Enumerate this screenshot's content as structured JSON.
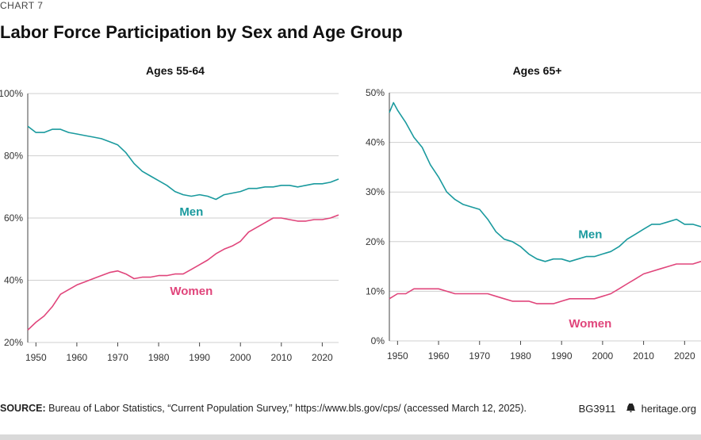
{
  "header": {
    "kicker": "CHART 7",
    "title": "Labor Force Participation by Sex and Age Group"
  },
  "footer": {
    "source_label": "SOURCE:",
    "source_text": " Bureau of Labor Statistics, “Current Population Survey,” https://www.bls.gov/cps/ (accessed March 12, 2025).",
    "report_id": "BG3911",
    "site": "heritage.org"
  },
  "colors": {
    "men": "#1a9a9e",
    "women": "#e0457b",
    "grid": "#cfcfcf",
    "axis": "#444444"
  },
  "chart_data": [
    {
      "type": "line",
      "title": "Ages 55-64",
      "xlim": [
        1948,
        2024
      ],
      "ylim": [
        20,
        100
      ],
      "xticks": [
        1950,
        1960,
        1970,
        1980,
        1990,
        2000,
        2010,
        2020
      ],
      "yticks": [
        20,
        40,
        60,
        80,
        100
      ],
      "ytick_labels": [
        "20%",
        "40%",
        "60%",
        "80%",
        "100%"
      ],
      "grid": true,
      "series": [
        {
          "name": "Men",
          "label_x": 1988,
          "label_y": 62,
          "x": [
            1948,
            1950,
            1952,
            1954,
            1956,
            1958,
            1960,
            1962,
            1964,
            1966,
            1968,
            1970,
            1972,
            1974,
            1976,
            1978,
            1980,
            1982,
            1984,
            1986,
            1988,
            1990,
            1992,
            1994,
            1996,
            1998,
            2000,
            2002,
            2004,
            2006,
            2008,
            2010,
            2012,
            2014,
            2016,
            2018,
            2020,
            2022,
            2024
          ],
          "y": [
            89.5,
            87.5,
            87.5,
            88.5,
            88.5,
            87.5,
            87.0,
            86.5,
            86.0,
            85.5,
            84.5,
            83.5,
            81.0,
            77.5,
            75.0,
            73.5,
            72.0,
            70.5,
            68.5,
            67.5,
            67.0,
            67.5,
            67.0,
            66.0,
            67.5,
            68.0,
            68.5,
            69.5,
            69.5,
            70.0,
            70.0,
            70.5,
            70.5,
            70.0,
            70.5,
            71.0,
            71.0,
            71.5,
            72.5
          ]
        },
        {
          "name": "Women",
          "label_x": 1988,
          "label_y": 36.5,
          "x": [
            1948,
            1950,
            1952,
            1954,
            1956,
            1958,
            1960,
            1962,
            1964,
            1966,
            1968,
            1970,
            1972,
            1974,
            1976,
            1978,
            1980,
            1982,
            1984,
            1986,
            1988,
            1990,
            1992,
            1994,
            1996,
            1998,
            2000,
            2002,
            2004,
            2006,
            2008,
            2010,
            2012,
            2014,
            2016,
            2018,
            2020,
            2022,
            2024
          ],
          "y": [
            24.0,
            26.5,
            28.5,
            31.5,
            35.5,
            37.0,
            38.5,
            39.5,
            40.5,
            41.5,
            42.5,
            43.0,
            42.0,
            40.5,
            41.0,
            41.0,
            41.5,
            41.5,
            42.0,
            42.0,
            43.5,
            45.0,
            46.5,
            48.5,
            50.0,
            51.0,
            52.5,
            55.5,
            57.0,
            58.5,
            60.0,
            60.0,
            59.5,
            59.0,
            59.0,
            59.5,
            59.5,
            60.0,
            61.0
          ]
        }
      ]
    },
    {
      "type": "line",
      "title": "Ages 65+",
      "xlim": [
        1948,
        2024
      ],
      "ylim": [
        0,
        50
      ],
      "xticks": [
        1950,
        1960,
        1970,
        1980,
        1990,
        2000,
        2010,
        2020
      ],
      "yticks": [
        0,
        10,
        20,
        30,
        40,
        50
      ],
      "ytick_labels": [
        "0%",
        "10%",
        "20%",
        "30%",
        "40%",
        "50%"
      ],
      "grid": true,
      "series": [
        {
          "name": "Men",
          "label_x": 1997,
          "label_y": 21.5,
          "x": [
            1948,
            1949,
            1950,
            1952,
            1954,
            1956,
            1958,
            1960,
            1962,
            1964,
            1966,
            1968,
            1970,
            1972,
            1974,
            1976,
            1978,
            1980,
            1982,
            1984,
            1986,
            1988,
            1990,
            1992,
            1994,
            1996,
            1998,
            2000,
            2002,
            2004,
            2006,
            2008,
            2010,
            2012,
            2014,
            2016,
            2018,
            2020,
            2022,
            2024
          ],
          "y": [
            46.0,
            48.0,
            46.5,
            44.0,
            41.0,
            39.0,
            35.5,
            33.0,
            30.0,
            28.5,
            27.5,
            27.0,
            26.5,
            24.5,
            22.0,
            20.5,
            20.0,
            19.0,
            17.5,
            16.5,
            16.0,
            16.5,
            16.5,
            16.0,
            16.5,
            17.0,
            17.0,
            17.5,
            18.0,
            19.0,
            20.5,
            21.5,
            22.5,
            23.5,
            23.5,
            24.0,
            24.5,
            23.5,
            23.5,
            23.0
          ]
        },
        {
          "name": "Women",
          "label_x": 1997,
          "label_y": 3.5,
          "x": [
            1948,
            1950,
            1952,
            1954,
            1956,
            1958,
            1960,
            1962,
            1964,
            1966,
            1968,
            1970,
            1972,
            1974,
            1976,
            1978,
            1980,
            1982,
            1984,
            1986,
            1988,
            1990,
            1992,
            1994,
            1996,
            1998,
            2000,
            2002,
            2004,
            2006,
            2008,
            2010,
            2012,
            2014,
            2016,
            2018,
            2020,
            2022,
            2024
          ],
          "y": [
            8.5,
            9.5,
            9.5,
            10.5,
            10.5,
            10.5,
            10.5,
            10.0,
            9.5,
            9.5,
            9.5,
            9.5,
            9.5,
            9.0,
            8.5,
            8.0,
            8.0,
            8.0,
            7.5,
            7.5,
            7.5,
            8.0,
            8.5,
            8.5,
            8.5,
            8.5,
            9.0,
            9.5,
            10.5,
            11.5,
            12.5,
            13.5,
            14.0,
            14.5,
            15.0,
            15.5,
            15.5,
            15.5,
            16.0
          ]
        }
      ]
    }
  ]
}
